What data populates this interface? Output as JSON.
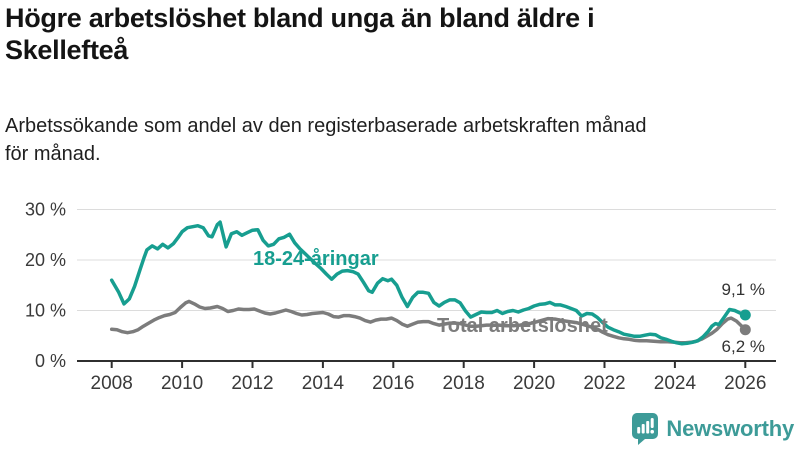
{
  "header": {
    "title_lines": [
      "Högre arbetslöshet bland unga än bland äldre i",
      "Skellefteå"
    ],
    "subtitle_lines": [
      "Arbetssökande som andel av den registerbaserade arbetskraften månad",
      "för månad."
    ]
  },
  "footer": {
    "brand": "Newsworthy",
    "logo_icon": "bar-chart-speech-bubble"
  },
  "colors": {
    "youth_line": "#179E90",
    "total_line": "#7C7C7C",
    "axis": "#2F2F2F",
    "grid": "#DCDCDC",
    "tick_text": "#3A3A3A",
    "value_text": "#333333",
    "brand_teal": "#3D9B98"
  },
  "chart_data": {
    "type": "line",
    "title": "Högre arbetslöshet bland unga än bland äldre i Skellefteå",
    "subtitle": "Arbetssökande som andel av den registerbaserade arbetskraften månad för månad.",
    "xlabel": "",
    "ylabel": "",
    "grid": "horizontal",
    "x_axis": {
      "ticks": [
        2008,
        2010,
        2012,
        2014,
        2016,
        2018,
        2020,
        2022,
        2024,
        2026
      ],
      "labels": [
        "2008",
        "2010",
        "2012",
        "2014",
        "2016",
        "2018",
        "2020",
        "2022",
        "2024",
        "2026"
      ]
    },
    "y_axis": {
      "ticks": [
        0,
        10,
        20,
        30
      ],
      "tick_labels": [
        "0 %",
        "10 %",
        "20 %",
        "30 %"
      ],
      "range": [
        0,
        32
      ],
      "unit": "%"
    },
    "series": [
      {
        "id": "youth",
        "label": "18-24-åringar",
        "end_label": "9,1 %",
        "end_value": 9.1,
        "color": "#179E90",
        "points": [
          [
            2008.0,
            16.0
          ],
          [
            2008.1,
            14.8
          ],
          [
            2008.2,
            13.6
          ],
          [
            2008.35,
            11.3
          ],
          [
            2008.5,
            12.3
          ],
          [
            2008.65,
            14.8
          ],
          [
            2008.8,
            18.0
          ],
          [
            2008.92,
            20.5
          ],
          [
            2009.0,
            22.0
          ],
          [
            2009.15,
            22.8
          ],
          [
            2009.3,
            22.2
          ],
          [
            2009.45,
            23.1
          ],
          [
            2009.6,
            22.4
          ],
          [
            2009.75,
            23.2
          ],
          [
            2009.9,
            24.6
          ],
          [
            2010.0,
            25.6
          ],
          [
            2010.15,
            26.4
          ],
          [
            2010.3,
            26.6
          ],
          [
            2010.45,
            26.8
          ],
          [
            2010.6,
            26.4
          ],
          [
            2010.75,
            24.8
          ],
          [
            2010.85,
            24.6
          ],
          [
            2011.0,
            27.0
          ],
          [
            2011.08,
            27.5
          ],
          [
            2011.25,
            22.6
          ],
          [
            2011.4,
            25.2
          ],
          [
            2011.55,
            25.6
          ],
          [
            2011.7,
            24.9
          ],
          [
            2011.85,
            25.4
          ],
          [
            2012.0,
            25.9
          ],
          [
            2012.15,
            26.0
          ],
          [
            2012.3,
            23.9
          ],
          [
            2012.45,
            22.8
          ],
          [
            2012.6,
            23.1
          ],
          [
            2012.75,
            24.2
          ],
          [
            2012.9,
            24.5
          ],
          [
            2013.05,
            25.1
          ],
          [
            2013.2,
            23.4
          ],
          [
            2013.35,
            22.2
          ],
          [
            2013.5,
            21.2
          ],
          [
            2013.65,
            20.2
          ],
          [
            2013.8,
            19.2
          ],
          [
            2013.95,
            18.3
          ],
          [
            2014.1,
            17.2
          ],
          [
            2014.25,
            16.2
          ],
          [
            2014.4,
            17.2
          ],
          [
            2014.55,
            17.8
          ],
          [
            2014.7,
            17.9
          ],
          [
            2014.85,
            17.7
          ],
          [
            2015.0,
            17.2
          ],
          [
            2015.15,
            15.6
          ],
          [
            2015.3,
            13.9
          ],
          [
            2015.4,
            13.6
          ],
          [
            2015.55,
            15.4
          ],
          [
            2015.7,
            16.3
          ],
          [
            2015.85,
            15.9
          ],
          [
            2015.95,
            16.2
          ],
          [
            2016.1,
            15.0
          ],
          [
            2016.25,
            12.6
          ],
          [
            2016.4,
            10.8
          ],
          [
            2016.55,
            12.6
          ],
          [
            2016.7,
            13.6
          ],
          [
            2016.85,
            13.6
          ],
          [
            2017.0,
            13.4
          ],
          [
            2017.15,
            11.6
          ],
          [
            2017.3,
            10.9
          ],
          [
            2017.45,
            11.6
          ],
          [
            2017.6,
            12.1
          ],
          [
            2017.75,
            12.1
          ],
          [
            2017.9,
            11.5
          ],
          [
            2018.05,
            9.9
          ],
          [
            2018.2,
            8.7
          ],
          [
            2018.35,
            9.2
          ],
          [
            2018.5,
            9.7
          ],
          [
            2018.65,
            9.6
          ],
          [
            2018.8,
            9.6
          ],
          [
            2018.95,
            10.0
          ],
          [
            2019.1,
            9.4
          ],
          [
            2019.25,
            9.8
          ],
          [
            2019.4,
            10.0
          ],
          [
            2019.55,
            9.7
          ],
          [
            2019.7,
            10.1
          ],
          [
            2019.85,
            10.4
          ],
          [
            2020.0,
            10.9
          ],
          [
            2020.15,
            11.2
          ],
          [
            2020.3,
            11.3
          ],
          [
            2020.45,
            11.6
          ],
          [
            2020.6,
            11.1
          ],
          [
            2020.75,
            11.1
          ],
          [
            2020.9,
            10.8
          ],
          [
            2021.05,
            10.4
          ],
          [
            2021.2,
            10.0
          ],
          [
            2021.35,
            8.9
          ],
          [
            2021.5,
            9.4
          ],
          [
            2021.65,
            9.3
          ],
          [
            2021.8,
            8.6
          ],
          [
            2021.95,
            7.6
          ],
          [
            2022.1,
            6.7
          ],
          [
            2022.25,
            6.2
          ],
          [
            2022.4,
            5.8
          ],
          [
            2022.55,
            5.3
          ],
          [
            2022.7,
            5.1
          ],
          [
            2022.85,
            4.9
          ],
          [
            2023.0,
            4.9
          ],
          [
            2023.15,
            5.1
          ],
          [
            2023.3,
            5.3
          ],
          [
            2023.45,
            5.2
          ],
          [
            2023.6,
            4.6
          ],
          [
            2023.75,
            4.3
          ],
          [
            2023.9,
            3.9
          ],
          [
            2024.05,
            3.6
          ],
          [
            2024.2,
            3.4
          ],
          [
            2024.35,
            3.5
          ],
          [
            2024.5,
            3.7
          ],
          [
            2024.65,
            4.0
          ],
          [
            2024.8,
            4.8
          ],
          [
            2024.95,
            5.9
          ],
          [
            2025.05,
            6.9
          ],
          [
            2025.15,
            7.4
          ],
          [
            2025.25,
            7.2
          ],
          [
            2025.4,
            8.7
          ],
          [
            2025.55,
            10.2
          ],
          [
            2025.7,
            10.0
          ],
          [
            2025.85,
            9.5
          ],
          [
            2026.0,
            9.1
          ]
        ]
      },
      {
        "id": "total",
        "label": "Total arbetslöshet",
        "end_label": "6,2 %",
        "end_value": 6.2,
        "color": "#7C7C7C",
        "points": [
          [
            2008.0,
            6.3
          ],
          [
            2008.15,
            6.2
          ],
          [
            2008.3,
            5.8
          ],
          [
            2008.45,
            5.6
          ],
          [
            2008.6,
            5.8
          ],
          [
            2008.75,
            6.2
          ],
          [
            2008.9,
            6.9
          ],
          [
            2009.05,
            7.5
          ],
          [
            2009.2,
            8.1
          ],
          [
            2009.35,
            8.6
          ],
          [
            2009.5,
            9.0
          ],
          [
            2009.65,
            9.2
          ],
          [
            2009.8,
            9.6
          ],
          [
            2009.95,
            10.6
          ],
          [
            2010.1,
            11.5
          ],
          [
            2010.2,
            11.8
          ],
          [
            2010.35,
            11.3
          ],
          [
            2010.5,
            10.7
          ],
          [
            2010.65,
            10.4
          ],
          [
            2010.8,
            10.5
          ],
          [
            2011.0,
            10.8
          ],
          [
            2011.15,
            10.4
          ],
          [
            2011.3,
            9.8
          ],
          [
            2011.45,
            10.0
          ],
          [
            2011.6,
            10.3
          ],
          [
            2011.75,
            10.2
          ],
          [
            2011.9,
            10.2
          ],
          [
            2012.05,
            10.3
          ],
          [
            2012.2,
            9.9
          ],
          [
            2012.35,
            9.5
          ],
          [
            2012.5,
            9.3
          ],
          [
            2012.65,
            9.5
          ],
          [
            2012.8,
            9.8
          ],
          [
            2012.95,
            10.1
          ],
          [
            2013.1,
            9.8
          ],
          [
            2013.25,
            9.4
          ],
          [
            2013.4,
            9.1
          ],
          [
            2013.55,
            9.2
          ],
          [
            2013.7,
            9.4
          ],
          [
            2013.85,
            9.5
          ],
          [
            2014.0,
            9.6
          ],
          [
            2014.15,
            9.3
          ],
          [
            2014.3,
            8.8
          ],
          [
            2014.45,
            8.7
          ],
          [
            2014.6,
            9.0
          ],
          [
            2014.75,
            9.0
          ],
          [
            2014.9,
            8.8
          ],
          [
            2015.05,
            8.5
          ],
          [
            2015.2,
            8.0
          ],
          [
            2015.35,
            7.7
          ],
          [
            2015.5,
            8.1
          ],
          [
            2015.65,
            8.3
          ],
          [
            2015.8,
            8.3
          ],
          [
            2015.95,
            8.5
          ],
          [
            2016.1,
            8.0
          ],
          [
            2016.25,
            7.3
          ],
          [
            2016.4,
            6.9
          ],
          [
            2016.55,
            7.3
          ],
          [
            2016.7,
            7.7
          ],
          [
            2016.85,
            7.8
          ],
          [
            2017.0,
            7.8
          ],
          [
            2017.15,
            7.4
          ],
          [
            2017.3,
            7.1
          ],
          [
            2017.45,
            7.3
          ],
          [
            2017.6,
            7.5
          ],
          [
            2017.75,
            7.5
          ],
          [
            2017.9,
            7.4
          ],
          [
            2018.05,
            7.1
          ],
          [
            2018.2,
            6.9
          ],
          [
            2018.35,
            6.9
          ],
          [
            2018.5,
            7.0
          ],
          [
            2018.65,
            7.1
          ],
          [
            2018.8,
            7.1
          ],
          [
            2019.0,
            7.1
          ],
          [
            2019.2,
            7.0
          ],
          [
            2019.4,
            7.0
          ],
          [
            2019.6,
            7.1
          ],
          [
            2019.8,
            7.3
          ],
          [
            2020.0,
            7.6
          ],
          [
            2020.2,
            8.0
          ],
          [
            2020.4,
            8.4
          ],
          [
            2020.6,
            8.3
          ],
          [
            2020.8,
            8.0
          ],
          [
            2021.0,
            7.8
          ],
          [
            2021.2,
            7.6
          ],
          [
            2021.4,
            7.2
          ],
          [
            2021.6,
            6.8
          ],
          [
            2021.8,
            6.3
          ],
          [
            2021.95,
            5.7
          ],
          [
            2022.1,
            5.2
          ],
          [
            2022.25,
            4.9
          ],
          [
            2022.4,
            4.6
          ],
          [
            2022.55,
            4.4
          ],
          [
            2022.7,
            4.3
          ],
          [
            2022.85,
            4.1
          ],
          [
            2023.0,
            4.0
          ],
          [
            2023.2,
            4.0
          ],
          [
            2023.4,
            3.9
          ],
          [
            2023.6,
            3.8
          ],
          [
            2023.8,
            3.8
          ],
          [
            2024.0,
            3.7
          ],
          [
            2024.15,
            3.6
          ],
          [
            2024.3,
            3.6
          ],
          [
            2024.45,
            3.7
          ],
          [
            2024.6,
            3.9
          ],
          [
            2024.75,
            4.3
          ],
          [
            2024.9,
            4.9
          ],
          [
            2025.05,
            5.5
          ],
          [
            2025.2,
            6.3
          ],
          [
            2025.35,
            7.4
          ],
          [
            2025.5,
            8.3
          ],
          [
            2025.6,
            8.5
          ],
          [
            2025.75,
            7.9
          ],
          [
            2025.9,
            6.9
          ],
          [
            2026.0,
            6.2
          ]
        ]
      }
    ]
  }
}
